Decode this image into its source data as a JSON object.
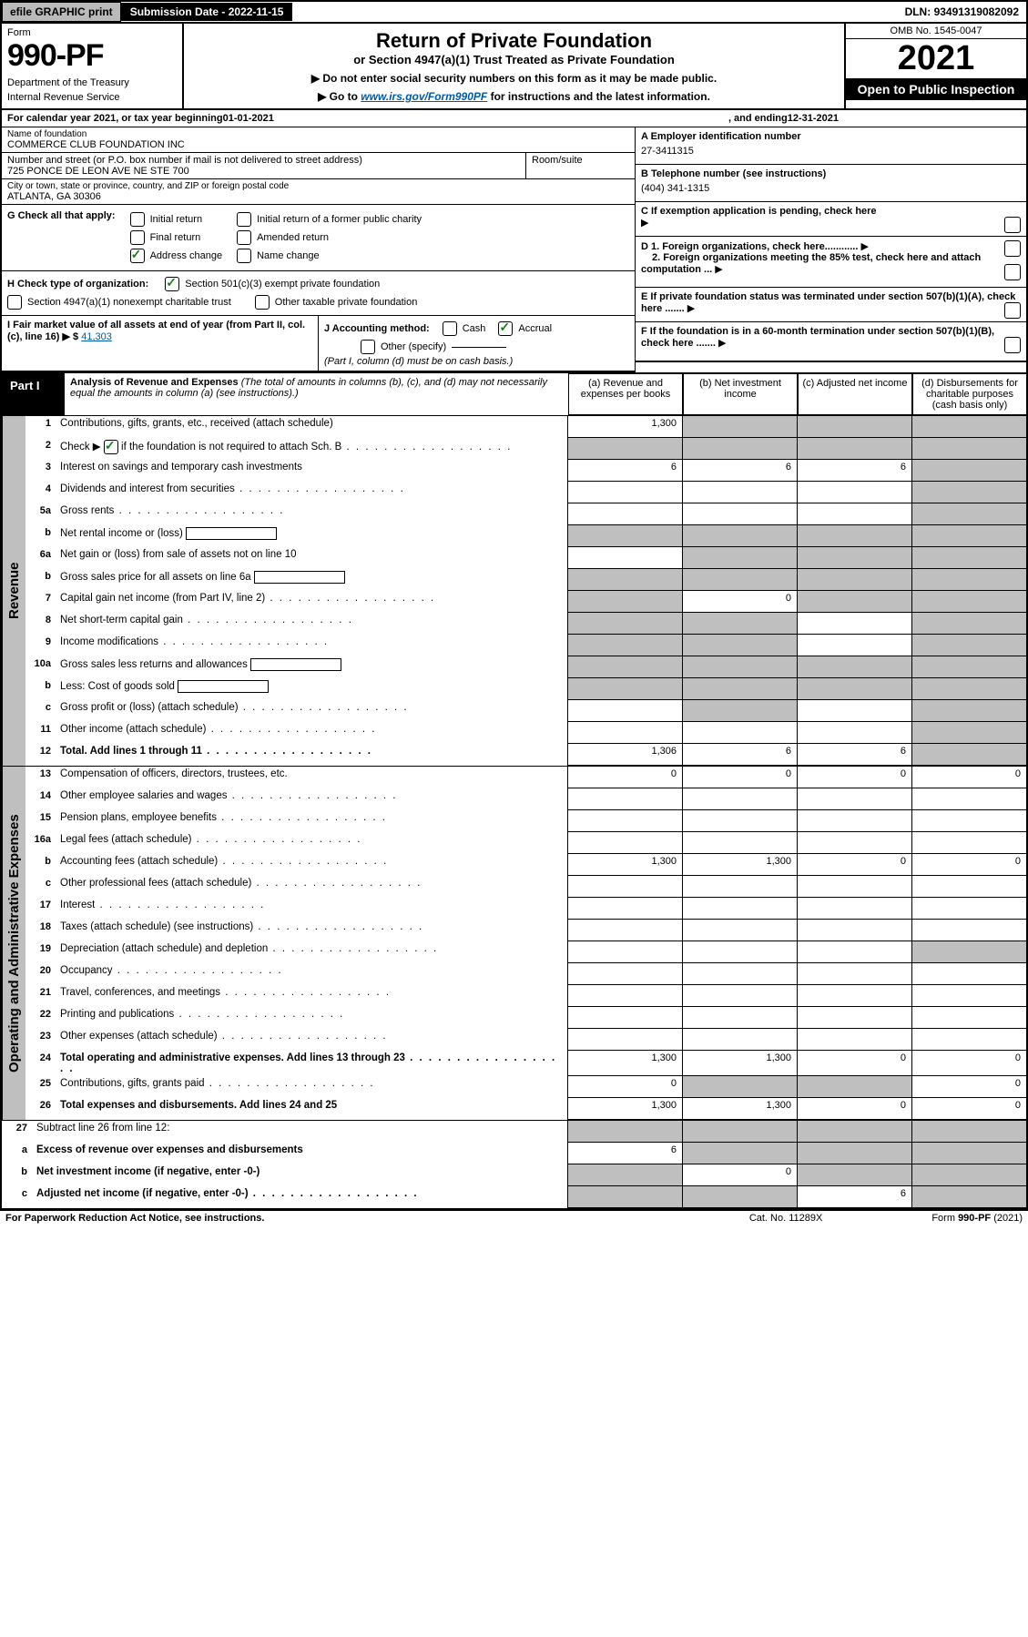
{
  "topbar": {
    "efile": "efile GRAPHIC print",
    "subdate_label": "Submission Date - ",
    "subdate": "2022-11-15",
    "dln_label": "DLN: ",
    "dln": "93491319082092"
  },
  "header": {
    "form_label": "Form",
    "form_no": "990-PF",
    "dept": "Department of the Treasury",
    "irs": "Internal Revenue Service",
    "title": "Return of Private Foundation",
    "subtitle": "or Section 4947(a)(1) Trust Treated as Private Foundation",
    "instr1": "▶ Do not enter social security numbers on this form as it may be made public.",
    "instr2_pre": "▶ Go to ",
    "instr2_link": "www.irs.gov/Form990PF",
    "instr2_post": " for instructions and the latest information.",
    "omb": "OMB No. 1545-0047",
    "year": "2021",
    "open": "Open to Public Inspection"
  },
  "calyear": {
    "pre": "For calendar year 2021, or tax year beginning ",
    "begin": "01-01-2021",
    "mid": ", and ending ",
    "end": "12-31-2021"
  },
  "entity": {
    "name_label": "Name of foundation",
    "name": "COMMERCE CLUB FOUNDATION INC",
    "addr_label": "Number and street (or P.O. box number if mail is not delivered to street address)",
    "addr": "725 PONCE DE LEON AVE NE STE 700",
    "room_label": "Room/suite",
    "city_label": "City or town, state or province, country, and ZIP or foreign postal code",
    "city": "ATLANTA, GA  30306",
    "A_label": "A Employer identification number",
    "A_val": "27-3411315",
    "B_label": "B Telephone number (see instructions)",
    "B_val": "(404) 341-1315",
    "C_label": "C If exemption application is pending, check here",
    "D1_label": "D 1. Foreign organizations, check here............",
    "D2_label": "2. Foreign organizations meeting the 85% test, check here and attach computation ...",
    "E_label": "E  If private foundation status was terminated under section 507(b)(1)(A), check here .......",
    "F_label": "F  If the foundation is in a 60-month termination under section 507(b)(1)(B), check here ......."
  },
  "G": {
    "label": "G Check all that apply:",
    "items": [
      "Initial return",
      "Final return",
      "Address change",
      "Initial return of a former public charity",
      "Amended return",
      "Name change"
    ],
    "checked_index": 2
  },
  "H": {
    "label": "H Check type of organization:",
    "opt1": "Section 501(c)(3) exempt private foundation",
    "opt2": "Section 4947(a)(1) nonexempt charitable trust",
    "opt3": "Other taxable private foundation"
  },
  "I": {
    "label": "I Fair market value of all assets at end of year (from Part II, col. (c), line 16) ▶ $",
    "val": "41,303"
  },
  "J": {
    "label": "J Accounting method:",
    "cash": "Cash",
    "accrual": "Accrual",
    "other": "Other (specify)",
    "note": "(Part I, column (d) must be on cash basis.)"
  },
  "part1": {
    "label": "Part I",
    "title": "Analysis of Revenue and Expenses",
    "desc": " (The total of amounts in columns (b), (c), and (d) may not necessarily equal the amounts in column (a) (see instructions).)",
    "cols": [
      "(a)  Revenue and expenses per books",
      "(b)  Net investment income",
      "(c)  Adjusted net income",
      "(d)  Disbursements for charitable purposes (cash basis only)"
    ]
  },
  "sidelabels": {
    "rev": "Revenue",
    "oae": "Operating and Administrative Expenses"
  },
  "rows": {
    "r1": {
      "n": "1",
      "d": "Contributions, gifts, grants, etc., received (attach schedule)",
      "a": "1,300",
      "b": "",
      "c": "",
      "dd": "",
      "grey": [
        "b",
        "c",
        "dd"
      ]
    },
    "r2": {
      "n": "2",
      "d_pre": "Check ▶ ",
      "d_post": " if the foundation is not required to attach Sch. B",
      "checked": true,
      "a": "",
      "b": "",
      "c": "",
      "dd": "",
      "grey": [
        "a",
        "b",
        "c",
        "dd"
      ],
      "dots": true
    },
    "r3": {
      "n": "3",
      "d": "Interest on savings and temporary cash investments",
      "a": "6",
      "b": "6",
      "c": "6",
      "dd": "",
      "grey": [
        "dd"
      ]
    },
    "r4": {
      "n": "4",
      "d": "Dividends and interest from securities",
      "a": "",
      "b": "",
      "c": "",
      "dd": "",
      "grey": [
        "dd"
      ],
      "dots": true
    },
    "r5a": {
      "n": "5a",
      "d": "Gross rents",
      "a": "",
      "b": "",
      "c": "",
      "dd": "",
      "grey": [
        "dd"
      ],
      "dots": true
    },
    "r5b": {
      "n": "b",
      "d": "Net rental income or (loss)",
      "inline": true,
      "a": "",
      "b": "",
      "c": "",
      "dd": "",
      "grey": [
        "a",
        "b",
        "c",
        "dd"
      ]
    },
    "r6a": {
      "n": "6a",
      "d": "Net gain or (loss) from sale of assets not on line 10",
      "a": "",
      "b": "",
      "c": "",
      "dd": "",
      "grey": [
        "b",
        "c",
        "dd"
      ]
    },
    "r6b": {
      "n": "b",
      "d": "Gross sales price for all assets on line 6a",
      "inline": true,
      "a": "",
      "b": "",
      "c": "",
      "dd": "",
      "grey": [
        "a",
        "b",
        "c",
        "dd"
      ]
    },
    "r7": {
      "n": "7",
      "d": "Capital gain net income (from Part IV, line 2)",
      "a": "",
      "b": "0",
      "c": "",
      "dd": "",
      "grey": [
        "a",
        "c",
        "dd"
      ],
      "dots": true
    },
    "r8": {
      "n": "8",
      "d": "Net short-term capital gain",
      "a": "",
      "b": "",
      "c": "",
      "dd": "",
      "grey": [
        "a",
        "b",
        "dd"
      ],
      "dots": true
    },
    "r9": {
      "n": "9",
      "d": "Income modifications",
      "a": "",
      "b": "",
      "c": "",
      "dd": "",
      "grey": [
        "a",
        "b",
        "dd"
      ],
      "dots": true
    },
    "r10a": {
      "n": "10a",
      "d": "Gross sales less returns and allowances",
      "inline": true,
      "a": "",
      "b": "",
      "c": "",
      "dd": "",
      "grey": [
        "a",
        "b",
        "c",
        "dd"
      ]
    },
    "r10b": {
      "n": "b",
      "d": "Less: Cost of goods sold",
      "inline": true,
      "a": "",
      "b": "",
      "c": "",
      "dd": "",
      "grey": [
        "a",
        "b",
        "c",
        "dd"
      ],
      "dots": true
    },
    "r10c": {
      "n": "c",
      "d": "Gross profit or (loss) (attach schedule)",
      "a": "",
      "b": "",
      "c": "",
      "dd": "",
      "grey": [
        "b",
        "dd"
      ],
      "dots": true
    },
    "r11": {
      "n": "11",
      "d": "Other income (attach schedule)",
      "a": "",
      "b": "",
      "c": "",
      "dd": "",
      "grey": [
        "dd"
      ],
      "dots": true
    },
    "r12": {
      "n": "12",
      "d": "Total. Add lines 1 through 11",
      "bold": true,
      "a": "1,306",
      "b": "6",
      "c": "6",
      "dd": "",
      "grey": [
        "dd"
      ],
      "dots": true
    },
    "r13": {
      "n": "13",
      "d": "Compensation of officers, directors, trustees, etc.",
      "a": "0",
      "b": "0",
      "c": "0",
      "dd": "0"
    },
    "r14": {
      "n": "14",
      "d": "Other employee salaries and wages",
      "a": "",
      "b": "",
      "c": "",
      "dd": "",
      "dots": true
    },
    "r15": {
      "n": "15",
      "d": "Pension plans, employee benefits",
      "a": "",
      "b": "",
      "c": "",
      "dd": "",
      "dots": true
    },
    "r16a": {
      "n": "16a",
      "d": "Legal fees (attach schedule)",
      "a": "",
      "b": "",
      "c": "",
      "dd": "",
      "dots": true
    },
    "r16b": {
      "n": "b",
      "d": "Accounting fees (attach schedule)",
      "a": "1,300",
      "b": "1,300",
      "c": "0",
      "dd": "0",
      "dots": true
    },
    "r16c": {
      "n": "c",
      "d": "Other professional fees (attach schedule)",
      "a": "",
      "b": "",
      "c": "",
      "dd": "",
      "dots": true
    },
    "r17": {
      "n": "17",
      "d": "Interest",
      "a": "",
      "b": "",
      "c": "",
      "dd": "",
      "dots": true
    },
    "r18": {
      "n": "18",
      "d": "Taxes (attach schedule) (see instructions)",
      "a": "",
      "b": "",
      "c": "",
      "dd": "",
      "dots": true
    },
    "r19": {
      "n": "19",
      "d": "Depreciation (attach schedule) and depletion",
      "a": "",
      "b": "",
      "c": "",
      "dd": "",
      "grey": [
        "dd"
      ],
      "dots": true
    },
    "r20": {
      "n": "20",
      "d": "Occupancy",
      "a": "",
      "b": "",
      "c": "",
      "dd": "",
      "dots": true
    },
    "r21": {
      "n": "21",
      "d": "Travel, conferences, and meetings",
      "a": "",
      "b": "",
      "c": "",
      "dd": "",
      "dots": true
    },
    "r22": {
      "n": "22",
      "d": "Printing and publications",
      "a": "",
      "b": "",
      "c": "",
      "dd": "",
      "dots": true
    },
    "r23": {
      "n": "23",
      "d": "Other expenses (attach schedule)",
      "a": "",
      "b": "",
      "c": "",
      "dd": "",
      "dots": true
    },
    "r24": {
      "n": "24",
      "d": "Total operating and administrative expenses. Add lines 13 through 23",
      "bold": true,
      "a": "1,300",
      "b": "1,300",
      "c": "0",
      "dd": "0",
      "dots": true
    },
    "r25": {
      "n": "25",
      "d": "Contributions, gifts, grants paid",
      "a": "0",
      "b": "",
      "c": "",
      "dd": "0",
      "grey": [
        "b",
        "c"
      ],
      "dots": true
    },
    "r26": {
      "n": "26",
      "d": "Total expenses and disbursements. Add lines 24 and 25",
      "bold": true,
      "a": "1,300",
      "b": "1,300",
      "c": "0",
      "dd": "0"
    },
    "r27": {
      "n": "27",
      "d": "Subtract line 26 from line 12:",
      "a": "",
      "b": "",
      "c": "",
      "dd": "",
      "grey": [
        "a",
        "b",
        "c",
        "dd"
      ]
    },
    "r27a": {
      "n": "a",
      "d": "Excess of revenue over expenses and disbursements",
      "bold": true,
      "a": "6",
      "b": "",
      "c": "",
      "dd": "",
      "grey": [
        "b",
        "c",
        "dd"
      ]
    },
    "r27b": {
      "n": "b",
      "d": "Net investment income (if negative, enter -0-)",
      "bold": true,
      "a": "",
      "b": "0",
      "c": "",
      "dd": "",
      "grey": [
        "a",
        "c",
        "dd"
      ]
    },
    "r27c": {
      "n": "c",
      "d": "Adjusted net income (if negative, enter -0-)",
      "bold": true,
      "a": "",
      "b": "",
      "c": "6",
      "dd": "",
      "grey": [
        "a",
        "b",
        "dd"
      ],
      "dots": true
    }
  },
  "footer": {
    "left": "For Paperwork Reduction Act Notice, see instructions.",
    "mid": "Cat. No. 11289X",
    "right": "Form 990-PF (2021)",
    "right_bold": "990-PF"
  }
}
